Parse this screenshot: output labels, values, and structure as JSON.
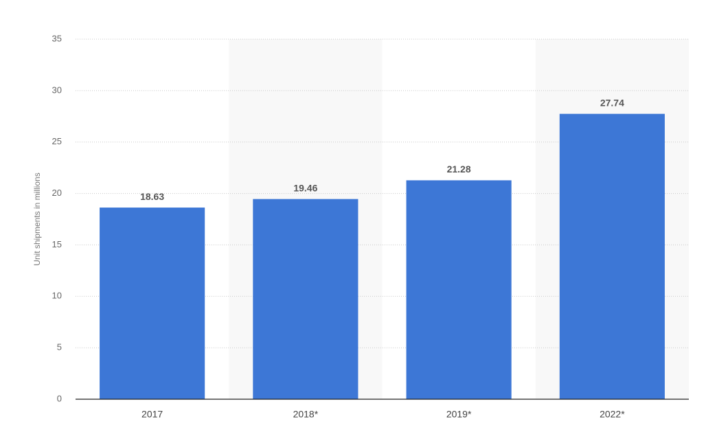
{
  "chart_data": {
    "type": "bar",
    "y_label": "Unit shipments in millions",
    "categories": [
      "2017",
      "2018*",
      "2019*",
      "2022*"
    ],
    "values": [
      18.63,
      19.46,
      21.28,
      27.74
    ],
    "color": "#3d77d6",
    "ylim": [
      0,
      35
    ],
    "yticks": [
      0,
      5,
      10,
      15,
      20,
      25,
      30,
      35
    ],
    "grid": true
  }
}
